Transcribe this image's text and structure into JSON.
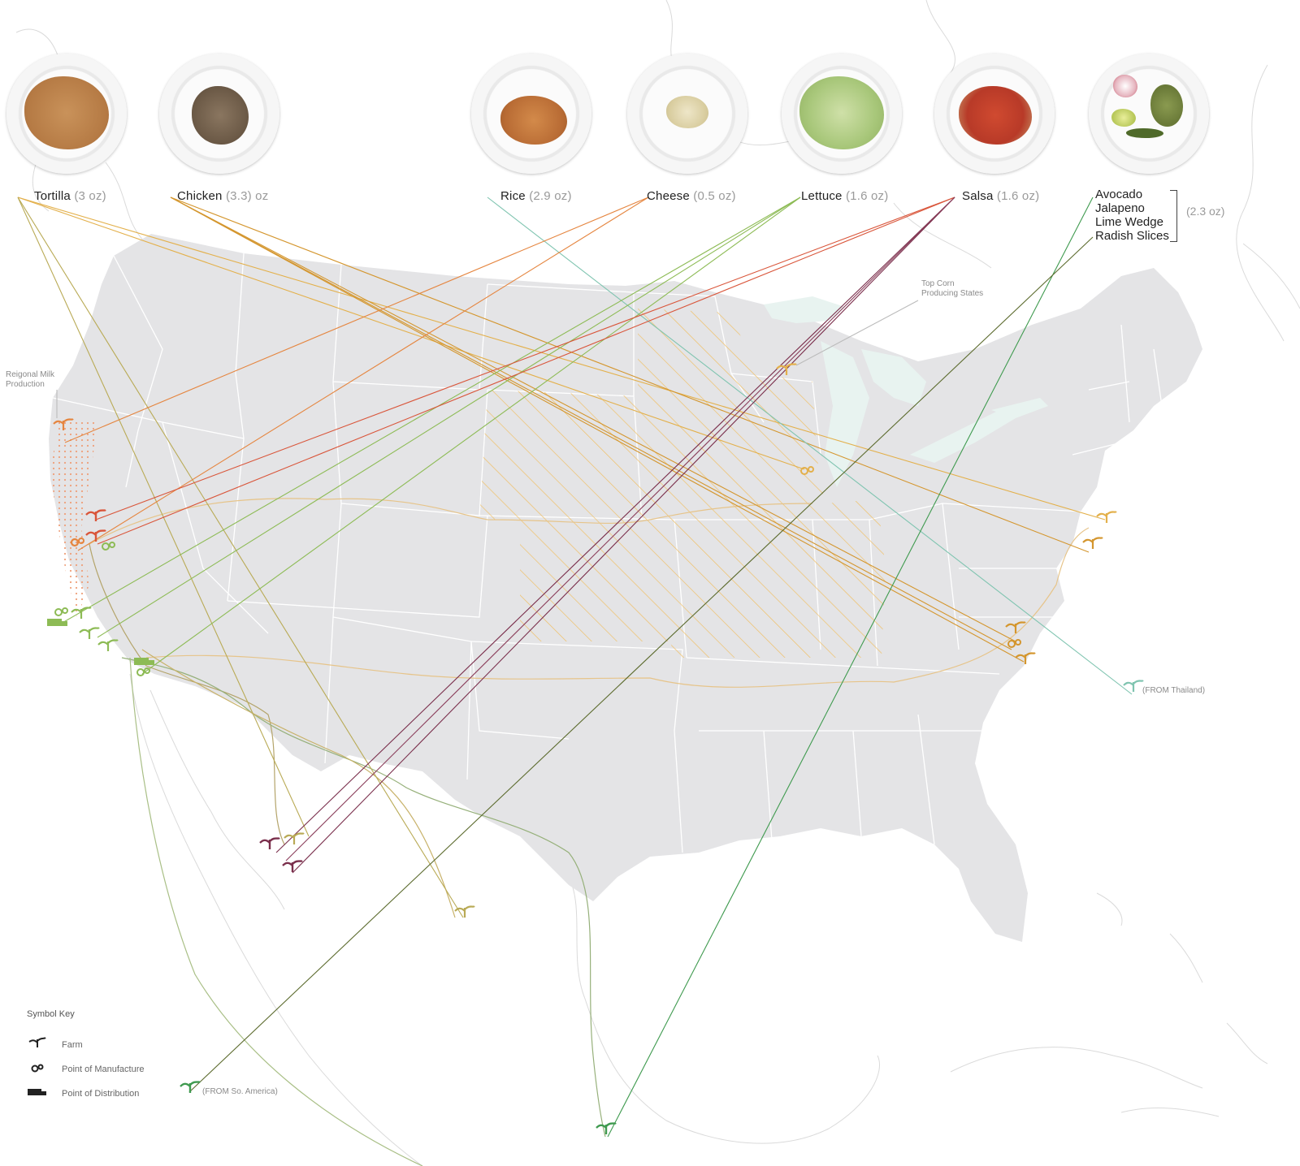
{
  "ingredients": [
    {
      "name": "Tortilla",
      "amount": "(3 oz)",
      "color": "#e3b04b"
    },
    {
      "name": "Chicken",
      "amount": "(3.3) oz",
      "color": "#d4962e"
    },
    {
      "name": "Rice",
      "amount": "(2.9 oz)",
      "color": "#7fc4b0"
    },
    {
      "name": "Cheese",
      "amount": "(0.5 oz)",
      "color": "#e5853f"
    },
    {
      "name": "Lettuce",
      "amount": "(1.6 oz)",
      "color": "#8dbb55"
    },
    {
      "name": "Salsa",
      "amount": "(1.6 oz)",
      "color": "#d9553a"
    }
  ],
  "garnish": {
    "items": [
      "Avocado",
      "Jalapeno",
      "Lime Wedge",
      "Radish Slices"
    ],
    "amount": "(2.3 oz)"
  },
  "annotations": {
    "milk": [
      "Reigonal Milk",
      "Production"
    ],
    "corn": [
      "Top Corn",
      "Producing States"
    ],
    "thailand": "(FROM Thailand)",
    "south_america": "(FROM So. America)"
  },
  "legend": {
    "title": "Symbol Key",
    "items": [
      {
        "icon": "farm-sprout-icon",
        "label": "Farm"
      },
      {
        "icon": "manufacture-gears-icon",
        "label": "Point of Manufacture"
      },
      {
        "icon": "distribution-truck-icon",
        "label": "Point of Distribution"
      }
    ]
  },
  "colors": {
    "land_us": "#e4e4e6",
    "state_border": "#ffffff",
    "great_lakes": "#e8f3f0",
    "corn_hatch": "#efc067",
    "milk_dots": "#eea07a",
    "salsa_dark": "#7a2f4c",
    "garnish_green": "#3f9a4f",
    "olive": "#a79a45"
  }
}
